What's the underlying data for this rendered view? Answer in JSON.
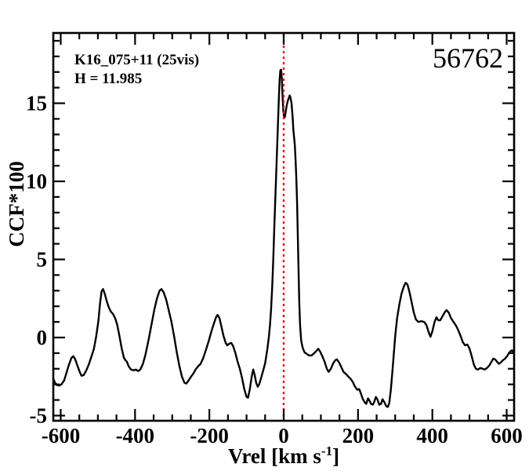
{
  "chart_data": {
    "type": "line",
    "title": "",
    "object_id": "56762",
    "annotations": [
      "K16_075+11 (25vis)",
      "H = 11.985"
    ],
    "xlabel": "Vrel [km s^-1]",
    "xlabel_parts": {
      "main": "Vrel [km s",
      "sup": "-1",
      "end": "]"
    },
    "ylabel": "CCF*100",
    "xlim": [
      -620,
      620
    ],
    "ylim": [
      -5.33,
      19.5
    ],
    "x_major_ticks": [
      -600,
      -400,
      -200,
      0,
      200,
      400,
      600
    ],
    "x_tick_labels": [
      "-600",
      "-400",
      "-200",
      "0",
      "200",
      "400",
      "600"
    ],
    "x_minor_step": 50,
    "y_major_ticks": [
      -5,
      0,
      5,
      10,
      15
    ],
    "y_tick_labels": [
      "-5",
      "0",
      "5",
      "10",
      "15"
    ],
    "y_minor_step": 1,
    "grid": false,
    "legend": "none",
    "line_color": "#000000",
    "reference_line": {
      "x": 0,
      "color": "#ee1111",
      "style": "dotted"
    },
    "series": [
      {
        "name": "CCF",
        "points": [
          [
            -620,
            -2.65
          ],
          [
            -615,
            -2.9
          ],
          [
            -610,
            -3.05
          ],
          [
            -604,
            -3.08
          ],
          [
            -598,
            -3.0
          ],
          [
            -591,
            -2.75
          ],
          [
            -585,
            -2.3
          ],
          [
            -578,
            -1.75
          ],
          [
            -571,
            -1.3
          ],
          [
            -566,
            -1.2
          ],
          [
            -561,
            -1.4
          ],
          [
            -555,
            -1.8
          ],
          [
            -549,
            -2.2
          ],
          [
            -544,
            -2.45
          ],
          [
            -538,
            -2.4
          ],
          [
            -531,
            -2.1
          ],
          [
            -524,
            -1.7
          ],
          [
            -517,
            -1.2
          ],
          [
            -511,
            -0.75
          ],
          [
            -505,
            0.0
          ],
          [
            -499,
            1.0
          ],
          [
            -494,
            2.2
          ],
          [
            -490,
            2.95
          ],
          [
            -486,
            3.1
          ],
          [
            -482,
            2.85
          ],
          [
            -477,
            2.4
          ],
          [
            -471,
            1.95
          ],
          [
            -465,
            1.65
          ],
          [
            -459,
            1.5
          ],
          [
            -453,
            1.2
          ],
          [
            -448,
            0.8
          ],
          [
            -442,
            0.1
          ],
          [
            -436,
            -0.7
          ],
          [
            -430,
            -1.3
          ],
          [
            -426,
            -1.45
          ],
          [
            -422,
            -1.55
          ],
          [
            -417,
            -1.85
          ],
          [
            -411,
            -2.05
          ],
          [
            -404,
            -2.1
          ],
          [
            -398,
            -2.05
          ],
          [
            -392,
            -2.15
          ],
          [
            -386,
            -2.05
          ],
          [
            -379,
            -1.7
          ],
          [
            -372,
            -1.1
          ],
          [
            -364,
            -0.2
          ],
          [
            -356,
            0.8
          ],
          [
            -348,
            1.8
          ],
          [
            -341,
            2.5
          ],
          [
            -334,
            3.0
          ],
          [
            -329,
            3.1
          ],
          [
            -323,
            2.9
          ],
          [
            -316,
            2.4
          ],
          [
            -309,
            1.7
          ],
          [
            -302,
            1.0
          ],
          [
            -295,
            0.1
          ],
          [
            -288,
            -0.9
          ],
          [
            -281,
            -1.8
          ],
          [
            -274,
            -2.5
          ],
          [
            -267,
            -2.9
          ],
          [
            -262,
            -2.95
          ],
          [
            -256,
            -2.75
          ],
          [
            -249,
            -2.5
          ],
          [
            -243,
            -2.3
          ],
          [
            -237,
            -2.05
          ],
          [
            -229,
            -1.8
          ],
          [
            -224,
            -1.7
          ],
          [
            -217,
            -1.35
          ],
          [
            -210,
            -0.85
          ],
          [
            -202,
            -0.25
          ],
          [
            -195,
            0.35
          ],
          [
            -188,
            0.9
          ],
          [
            -182,
            1.3
          ],
          [
            -178,
            1.45
          ],
          [
            -173,
            1.25
          ],
          [
            -168,
            0.75
          ],
          [
            -162,
            0.1
          ],
          [
            -156,
            -0.35
          ],
          [
            -152,
            -0.5
          ],
          [
            -147,
            -0.4
          ],
          [
            -141,
            -0.35
          ],
          [
            -136,
            -0.55
          ],
          [
            -130,
            -1.0
          ],
          [
            -124,
            -1.55
          ],
          [
            -118,
            -2.0
          ],
          [
            -112,
            -2.6
          ],
          [
            -106,
            -3.3
          ],
          [
            -100,
            -3.8
          ],
          [
            -96,
            -3.85
          ],
          [
            -91,
            -3.3
          ],
          [
            -86,
            -2.5
          ],
          [
            -82,
            -2.05
          ],
          [
            -78,
            -2.4
          ],
          [
            -74,
            -2.9
          ],
          [
            -70,
            -3.15
          ],
          [
            -66,
            -3.0
          ],
          [
            -61,
            -2.6
          ],
          [
            -55,
            -2.1
          ],
          [
            -50,
            -1.65
          ],
          [
            -44,
            -0.75
          ],
          [
            -40,
            0.0
          ],
          [
            -37,
            0.8
          ],
          [
            -34,
            1.8
          ],
          [
            -31,
            3.2
          ],
          [
            -28,
            5.0
          ],
          [
            -25,
            7.2
          ],
          [
            -22,
            9.3
          ],
          [
            -19,
            11.3
          ],
          [
            -16,
            13.3
          ],
          [
            -13,
            15.3
          ],
          [
            -11,
            16.5
          ],
          [
            -9,
            17.1
          ],
          [
            -7,
            17.15
          ],
          [
            -5,
            16.6
          ],
          [
            -3,
            15.4
          ],
          [
            -1,
            14.5
          ],
          [
            1,
            14.15
          ],
          [
            3,
            14.1
          ],
          [
            5,
            14.4
          ],
          [
            8,
            14.85
          ],
          [
            11,
            15.15
          ],
          [
            14,
            15.35
          ],
          [
            16,
            15.5
          ],
          [
            18,
            15.4
          ],
          [
            21,
            15.0
          ],
          [
            24,
            14.1
          ],
          [
            26,
            13.3
          ],
          [
            28,
            12.8
          ],
          [
            30,
            12.3
          ],
          [
            32,
            11.3
          ],
          [
            34,
            10.2
          ],
          [
            36,
            8.6
          ],
          [
            38,
            6.5
          ],
          [
            40,
            4.2
          ],
          [
            42,
            2.2
          ],
          [
            44,
            0.8
          ],
          [
            47,
            -0.2
          ],
          [
            51,
            -0.65
          ],
          [
            56,
            -0.95
          ],
          [
            62,
            -1.05
          ],
          [
            68,
            -1.15
          ],
          [
            75,
            -1.15
          ],
          [
            82,
            -1.0
          ],
          [
            88,
            -0.85
          ],
          [
            93,
            -0.72
          ],
          [
            98,
            -0.9
          ],
          [
            104,
            -1.2
          ],
          [
            110,
            -1.55
          ],
          [
            116,
            -2.0
          ],
          [
            121,
            -2.2
          ],
          [
            127,
            -2.0
          ],
          [
            133,
            -1.65
          ],
          [
            139,
            -1.45
          ],
          [
            143,
            -1.4
          ],
          [
            149,
            -1.6
          ],
          [
            155,
            -1.9
          ],
          [
            161,
            -2.2
          ],
          [
            168,
            -2.35
          ],
          [
            174,
            -2.5
          ],
          [
            180,
            -2.65
          ],
          [
            186,
            -2.85
          ],
          [
            192,
            -3.15
          ],
          [
            198,
            -3.35
          ],
          [
            203,
            -3.3
          ],
          [
            208,
            -3.6
          ],
          [
            213,
            -3.95
          ],
          [
            218,
            -4.15
          ],
          [
            222,
            -4.25
          ],
          [
            227,
            -3.9
          ],
          [
            231,
            -4.05
          ],
          [
            235,
            -4.25
          ],
          [
            240,
            -4.3
          ],
          [
            244,
            -4.1
          ],
          [
            248,
            -3.8
          ],
          [
            252,
            -3.95
          ],
          [
            257,
            -4.3
          ],
          [
            262,
            -4.25
          ],
          [
            266,
            -3.95
          ],
          [
            271,
            -4.15
          ],
          [
            276,
            -4.4
          ],
          [
            280,
            -4.45
          ],
          [
            284,
            -4.2
          ],
          [
            288,
            -3.4
          ],
          [
            292,
            -2.3
          ],
          [
            296,
            -1.1
          ],
          [
            300,
            0.1
          ],
          [
            305,
            1.2
          ],
          [
            311,
            2.1
          ],
          [
            317,
            2.8
          ],
          [
            323,
            3.25
          ],
          [
            328,
            3.5
          ],
          [
            333,
            3.4
          ],
          [
            338,
            2.95
          ],
          [
            344,
            2.3
          ],
          [
            350,
            1.6
          ],
          [
            356,
            1.15
          ],
          [
            362,
            1.0
          ],
          [
            370,
            1.05
          ],
          [
            378,
            1.0
          ],
          [
            384,
            0.8
          ],
          [
            390,
            0.35
          ],
          [
            395,
            0.05
          ],
          [
            400,
            0.4
          ],
          [
            406,
            1.0
          ],
          [
            411,
            1.3
          ],
          [
            416,
            1.1
          ],
          [
            421,
            1.1
          ],
          [
            427,
            1.35
          ],
          [
            433,
            1.6
          ],
          [
            438,
            1.75
          ],
          [
            444,
            1.6
          ],
          [
            450,
            1.25
          ],
          [
            457,
            1.0
          ],
          [
            464,
            0.75
          ],
          [
            470,
            0.45
          ],
          [
            476,
            0.1
          ],
          [
            482,
            -0.3
          ],
          [
            488,
            -0.5
          ],
          [
            494,
            -0.45
          ],
          [
            500,
            -0.7
          ],
          [
            506,
            -1.2
          ],
          [
            512,
            -1.75
          ],
          [
            517,
            -2.0
          ],
          [
            523,
            -2.05
          ],
          [
            529,
            -1.95
          ],
          [
            535,
            -2.0
          ],
          [
            541,
            -2.05
          ],
          [
            547,
            -1.95
          ],
          [
            553,
            -1.8
          ],
          [
            559,
            -1.55
          ],
          [
            564,
            -1.35
          ],
          [
            569,
            -1.4
          ],
          [
            574,
            -1.55
          ],
          [
            579,
            -1.68
          ],
          [
            584,
            -1.6
          ],
          [
            590,
            -1.45
          ],
          [
            596,
            -1.35
          ],
          [
            601,
            -1.2
          ],
          [
            606,
            -1.0
          ],
          [
            610,
            -0.88
          ],
          [
            614,
            -0.82
          ],
          [
            617,
            -0.9
          ],
          [
            620,
            -1.02
          ]
        ]
      }
    ]
  }
}
